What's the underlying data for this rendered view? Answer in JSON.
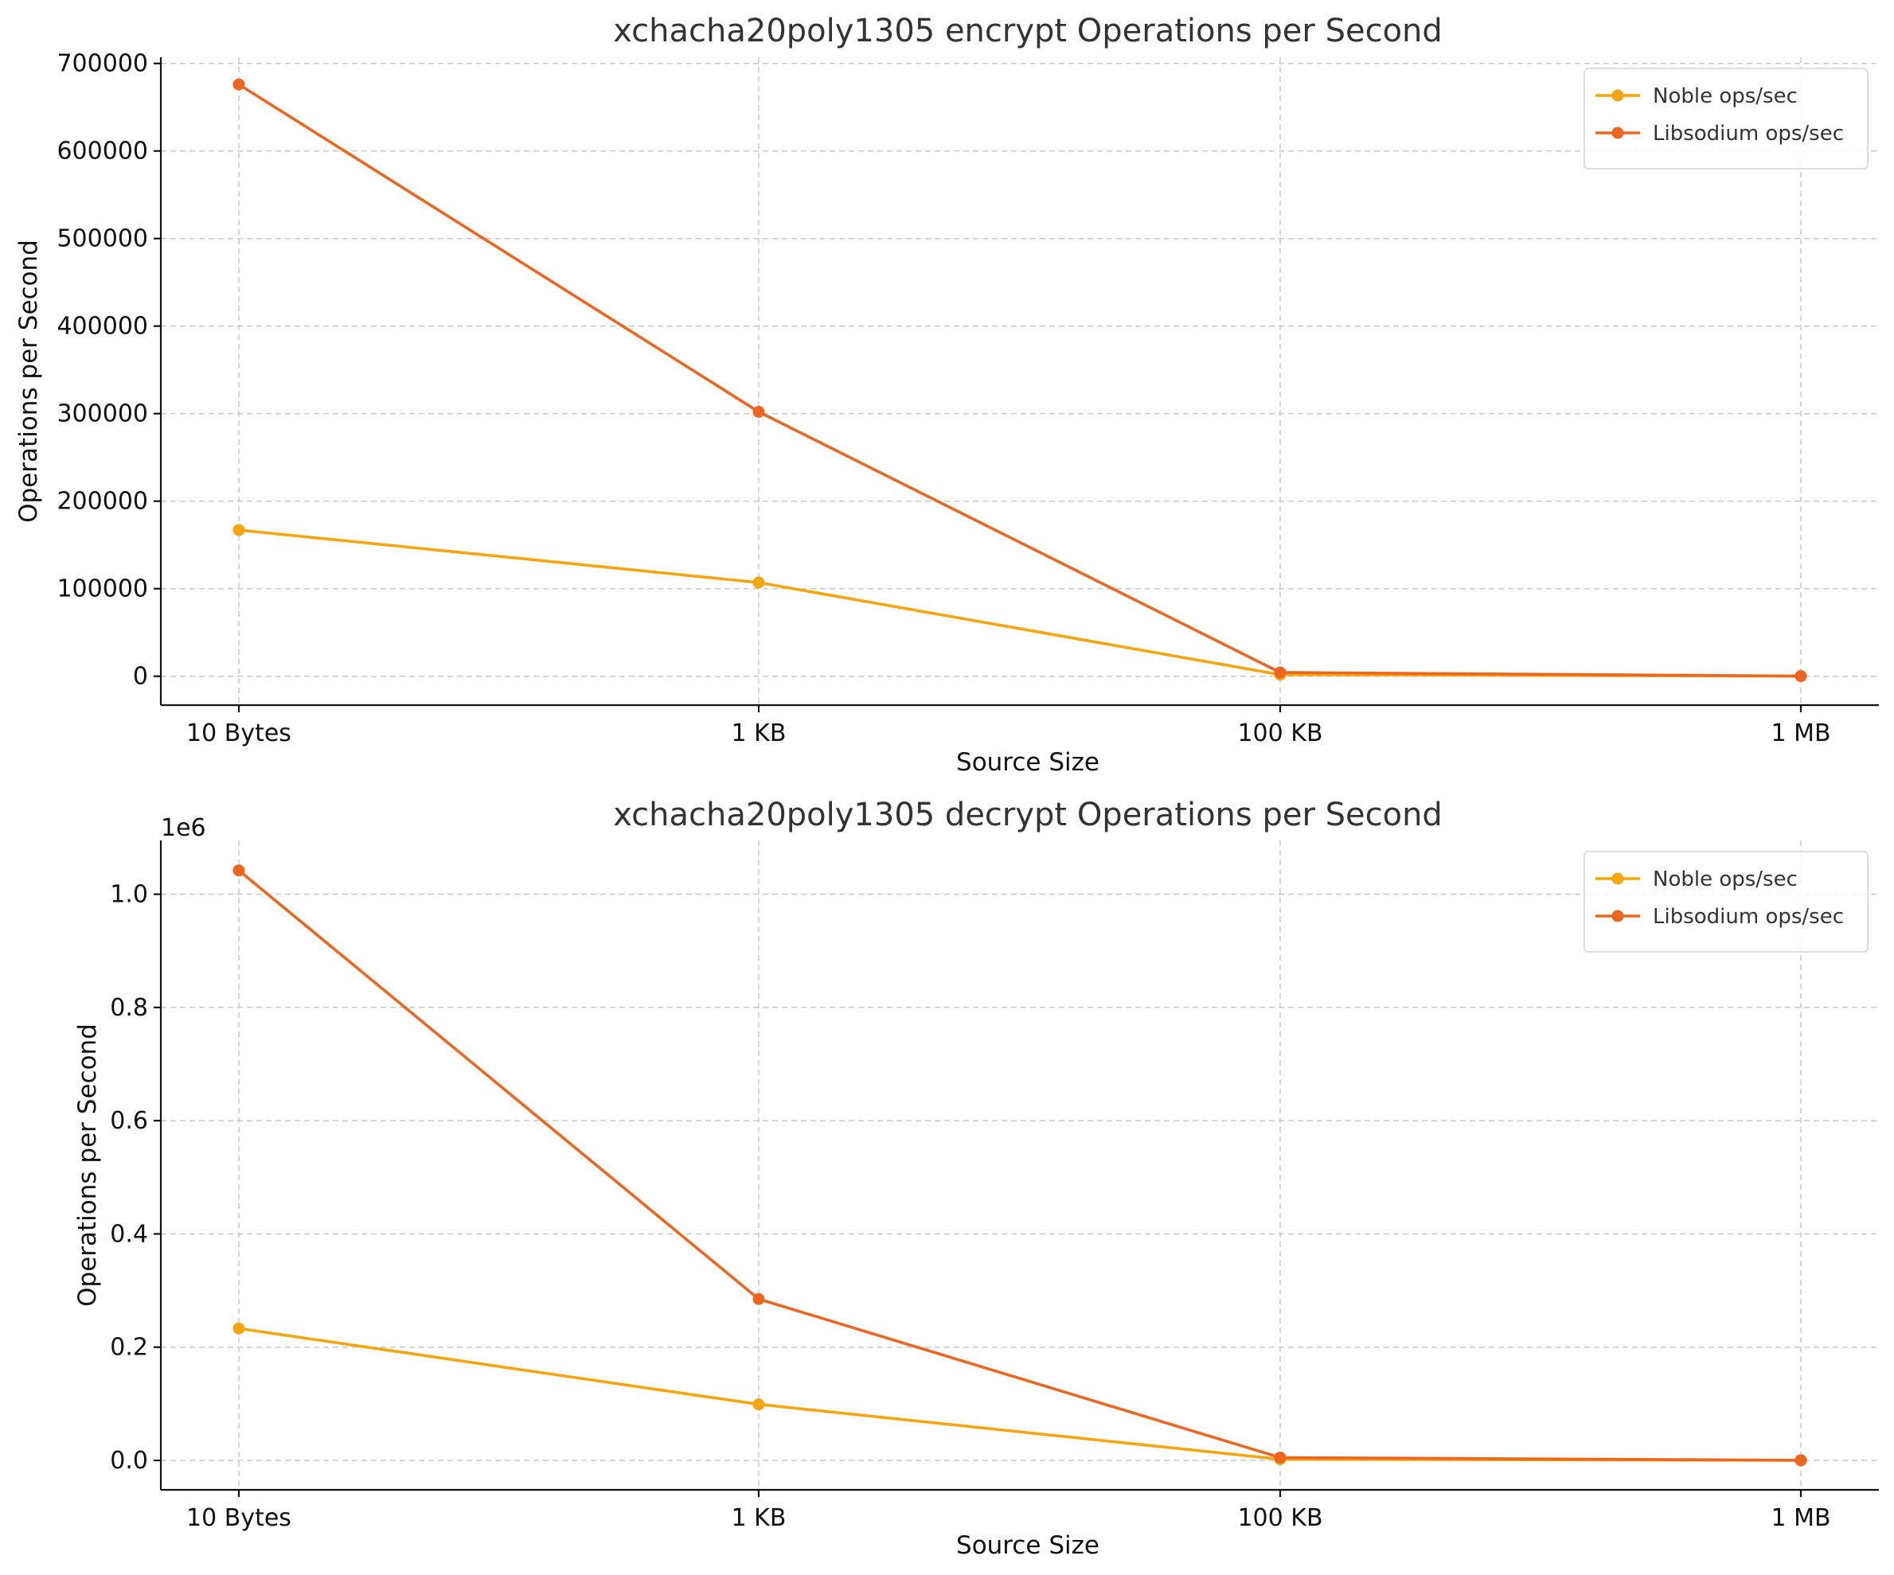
{
  "chart_data": [
    {
      "type": "line",
      "title": "xchacha20poly1305 encrypt Operations per Second",
      "xlabel": "Source Size",
      "ylabel": "Operations per Second",
      "categories": [
        "10 Bytes",
        "1 KB",
        "100 KB",
        "1 MB"
      ],
      "ylim": [
        -33000,
        707000
      ],
      "yticks": [
        0,
        100000,
        200000,
        300000,
        400000,
        500000,
        600000,
        700000
      ],
      "ytick_labels": [
        "0",
        "100000",
        "200000",
        "300000",
        "400000",
        "500000",
        "600000",
        "700000"
      ],
      "offset_label": "",
      "grid": true,
      "legend_position": "top-right",
      "series": [
        {
          "name": "Noble ops/sec",
          "color": "#f5a50f",
          "values": [
            167000,
            107000,
            1800,
            90
          ]
        },
        {
          "name": "Libsodium ops/sec",
          "color": "#ec6620",
          "values": [
            676000,
            302000,
            4300,
            180
          ]
        }
      ]
    },
    {
      "type": "line",
      "title": "xchacha20poly1305 decrypt Operations per Second",
      "xlabel": "Source Size",
      "ylabel": "Operations per Second",
      "categories": [
        "10 Bytes",
        "1 KB",
        "100 KB",
        "1 MB"
      ],
      "ylim": [
        -0.052,
        1.095
      ],
      "yticks": [
        0,
        0.2,
        0.4,
        0.6,
        0.8,
        1.0
      ],
      "ytick_labels": [
        "0.0",
        "0.2",
        "0.4",
        "0.6",
        "0.8",
        "1.0"
      ],
      "offset_label": "1e6",
      "grid": true,
      "legend_position": "top-right",
      "series": [
        {
          "name": "Noble ops/sec",
          "color": "#f5a50f",
          "values": [
            0.233,
            0.099,
            0.002,
            0.0001
          ]
        },
        {
          "name": "Libsodium ops/sec",
          "color": "#ec6620",
          "values": [
            1.042,
            0.285,
            0.005,
            0.0002
          ]
        }
      ]
    }
  ]
}
